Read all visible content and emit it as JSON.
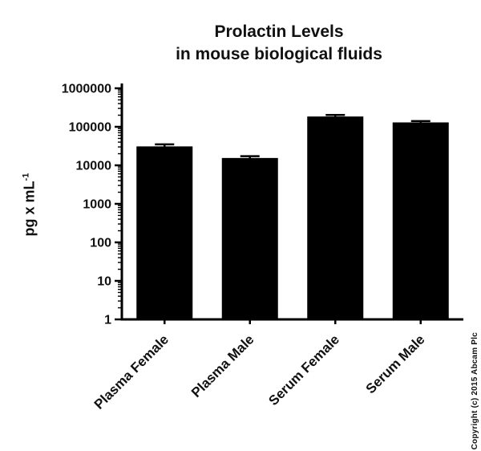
{
  "title": {
    "line1": "Prolactin Levels",
    "line2": "in mouse biological fluids"
  },
  "ylabel": {
    "text": "pg x mL",
    "sup": "-1"
  },
  "copyright": "Copyright (c) 2015 Abcam Plc",
  "chart_data": {
    "type": "bar",
    "title": "Prolactin Levels in mouse biological fluids",
    "xlabel": "",
    "ylabel": "pg x mL^-1",
    "yscale": "log",
    "ylim": [
      1,
      1000000
    ],
    "ytick_values": [
      1,
      10,
      100,
      1000,
      10000,
      100000,
      1000000
    ],
    "categories": [
      "Plasma Female",
      "Plasma Male",
      "Serum Female",
      "Serum Male"
    ],
    "values": [
      31000,
      15500,
      185000,
      130000
    ],
    "errors": [
      4000,
      1800,
      18000,
      11000
    ],
    "bar_color": "#000000",
    "grid": false,
    "legend": false
  }
}
